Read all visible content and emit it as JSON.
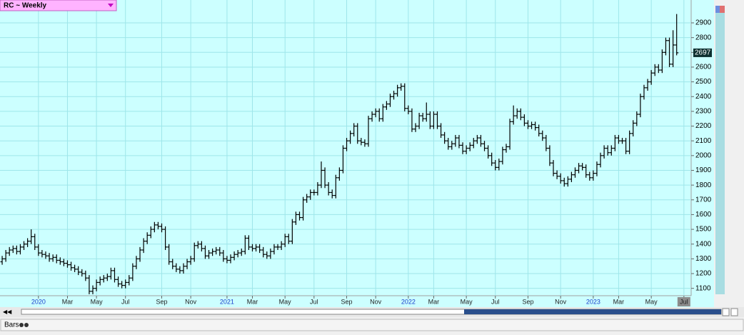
{
  "chart_data": {
    "type": "ohlc",
    "title": "RC ~ Weekly",
    "status": "Bars",
    "color": "#000000",
    "grid": true,
    "open": [
      1280,
      1300,
      1340,
      1360,
      1370,
      1350,
      1380,
      1400,
      1420,
      1450,
      1380,
      1340,
      1330,
      1320,
      1300,
      1310,
      1290,
      1280,
      1270,
      1260,
      1240,
      1230,
      1210,
      1200,
      1170,
      1080,
      1100,
      1140,
      1160,
      1170,
      1180,
      1220,
      1160,
      1130,
      1120,
      1140,
      1170,
      1250,
      1300,
      1360,
      1420,
      1460,
      1500,
      1530,
      1520,
      1500,
      1380,
      1280,
      1250,
      1230,
      1220,
      1250,
      1280,
      1300,
      1390,
      1400,
      1370,
      1320,
      1340,
      1350,
      1360,
      1340,
      1300,
      1290,
      1310,
      1330,
      1340,
      1350,
      1440,
      1380,
      1370,
      1380,
      1360,
      1330,
      1320,
      1350,
      1380,
      1380,
      1400,
      1450,
      1420,
      1550,
      1600,
      1580,
      1700,
      1720,
      1750,
      1750,
      1800,
      1900,
      1800,
      1750,
      1730,
      1850,
      1900,
      2050,
      2100,
      2150,
      2200,
      2100,
      2090,
      2080,
      2250,
      2280,
      2300,
      2250,
      2330,
      2350,
      2400,
      2420,
      2460,
      2470,
      2320,
      2300,
      2180,
      2200,
      2270,
      2250,
      2280,
      2200,
      2280,
      2200,
      2140,
      2100,
      2060,
      2080,
      2120,
      2070,
      2030,
      2050,
      2070,
      2100,
      2120,
      2080,
      2050,
      2000,
      1950,
      1920,
      1960,
      2040,
      2060,
      2230,
      2270,
      2300,
      2260,
      2220,
      2200,
      2210,
      2190,
      2150,
      2120,
      2050,
      1950,
      1880,
      1860,
      1830,
      1810,
      1840,
      1870,
      1900,
      1930,
      1920,
      1870,
      1850,
      1880,
      1940,
      2000,
      2050,
      2020,
      2050,
      2120,
      2100,
      2100,
      2030,
      2150,
      2220,
      2280,
      2400,
      2460,
      2500,
      2560,
      2600,
      2580,
      2700,
      2780,
      2620,
      2750
    ],
    "high": [
      1320,
      1360,
      1380,
      1390,
      1390,
      1400,
      1420,
      1440,
      1500,
      1470,
      1400,
      1360,
      1350,
      1340,
      1330,
      1330,
      1310,
      1300,
      1290,
      1280,
      1260,
      1250,
      1230,
      1220,
      1190,
      1120,
      1160,
      1180,
      1190,
      1200,
      1240,
      1240,
      1180,
      1150,
      1160,
      1190,
      1270,
      1320,
      1380,
      1440,
      1480,
      1520,
      1550,
      1550,
      1540,
      1520,
      1400,
      1300,
      1270,
      1250,
      1270,
      1300,
      1320,
      1410,
      1420,
      1420,
      1390,
      1360,
      1370,
      1380,
      1380,
      1360,
      1320,
      1330,
      1350,
      1360,
      1370,
      1460,
      1460,
      1400,
      1400,
      1400,
      1380,
      1350,
      1370,
      1400,
      1400,
      1420,
      1470,
      1470,
      1570,
      1620,
      1620,
      1720,
      1740,
      1770,
      1770,
      1820,
      1960,
      1920,
      1820,
      1770,
      1870,
      1920,
      2070,
      2120,
      2170,
      2220,
      2220,
      2120,
      2110,
      2270,
      2300,
      2320,
      2320,
      2350,
      2370,
      2420,
      2440,
      2480,
      2490,
      2490,
      2340,
      2320,
      2220,
      2290,
      2290,
      2360,
      2300,
      2300,
      2300,
      2220,
      2160,
      2120,
      2100,
      2140,
      2140,
      2090,
      2070,
      2090,
      2120,
      2140,
      2140,
      2100,
      2070,
      2020,
      1970,
      1980,
      2060,
      2080,
      2250,
      2340,
      2320,
      2320,
      2280,
      2240,
      2230,
      2230,
      2210,
      2170,
      2140,
      2070,
      1970,
      1900,
      1880,
      1850,
      1860,
      1890,
      1920,
      1950,
      1950,
      1940,
      1890,
      1900,
      1960,
      2020,
      2070,
      2070,
      2070,
      2140,
      2140,
      2120,
      2120,
      2170,
      2240,
      2300,
      2420,
      2480,
      2520,
      2580,
      2620,
      2620,
      2720,
      2800,
      2800,
      2850,
      2960
    ],
    "low": [
      1260,
      1280,
      1320,
      1340,
      1330,
      1330,
      1360,
      1380,
      1400,
      1360,
      1320,
      1310,
      1300,
      1280,
      1280,
      1270,
      1260,
      1250,
      1240,
      1220,
      1210,
      1190,
      1180,
      1150,
      1060,
      1060,
      1080,
      1120,
      1140,
      1150,
      1160,
      1140,
      1110,
      1100,
      1100,
      1120,
      1150,
      1230,
      1280,
      1340,
      1400,
      1440,
      1480,
      1500,
      1480,
      1360,
      1260,
      1230,
      1210,
      1200,
      1200,
      1230,
      1260,
      1280,
      1370,
      1350,
      1300,
      1300,
      1320,
      1330,
      1320,
      1280,
      1270,
      1270,
      1290,
      1310,
      1320,
      1330,
      1360,
      1350,
      1350,
      1340,
      1310,
      1300,
      1300,
      1330,
      1360,
      1360,
      1380,
      1400,
      1400,
      1530,
      1560,
      1560,
      1680,
      1700,
      1730,
      1730,
      1780,
      1780,
      1730,
      1710,
      1710,
      1830,
      1880,
      2030,
      2080,
      2130,
      2080,
      2070,
      2060,
      2060,
      2230,
      2260,
      2230,
      2230,
      2310,
      2330,
      2380,
      2400,
      2440,
      2300,
      2280,
      2160,
      2160,
      2180,
      2230,
      2230,
      2180,
      2180,
      2180,
      2120,
      2080,
      2040,
      2040,
      2060,
      2050,
      2010,
      2010,
      2030,
      2050,
      2080,
      2060,
      2030,
      1980,
      1930,
      1900,
      1900,
      1940,
      2020,
      2040,
      2210,
      2250,
      2240,
      2200,
      2180,
      2180,
      2170,
      2130,
      2100,
      2030,
      1930,
      1860,
      1840,
      1810,
      1790,
      1790,
      1820,
      1850,
      1880,
      1900,
      1850,
      1830,
      1830,
      1860,
      1920,
      1980,
      2000,
      2000,
      2030,
      2080,
      2080,
      2010,
      2010,
      2130,
      2200,
      2260,
      2380,
      2440,
      2480,
      2540,
      2560,
      2560,
      2680,
      2600,
      2600,
      2680
    ],
    "close": [
      1300,
      1340,
      1360,
      1370,
      1350,
      1380,
      1400,
      1420,
      1450,
      1380,
      1340,
      1330,
      1320,
      1300,
      1310,
      1290,
      1280,
      1270,
      1260,
      1240,
      1230,
      1210,
      1200,
      1170,
      1080,
      1100,
      1140,
      1160,
      1170,
      1180,
      1220,
      1160,
      1130,
      1120,
      1140,
      1170,
      1250,
      1300,
      1360,
      1420,
      1460,
      1500,
      1530,
      1520,
      1500,
      1380,
      1280,
      1250,
      1230,
      1220,
      1250,
      1280,
      1300,
      1390,
      1400,
      1370,
      1320,
      1340,
      1350,
      1360,
      1340,
      1300,
      1290,
      1310,
      1330,
      1340,
      1350,
      1440,
      1380,
      1370,
      1380,
      1360,
      1330,
      1320,
      1350,
      1380,
      1380,
      1400,
      1450,
      1420,
      1550,
      1600,
      1580,
      1700,
      1720,
      1750,
      1750,
      1800,
      1900,
      1800,
      1750,
      1730,
      1850,
      1900,
      2050,
      2100,
      2150,
      2200,
      2100,
      2090,
      2080,
      2250,
      2280,
      2300,
      2250,
      2330,
      2350,
      2400,
      2420,
      2460,
      2470,
      2320,
      2300,
      2180,
      2200,
      2270,
      2250,
      2280,
      2200,
      2280,
      2200,
      2140,
      2100,
      2060,
      2080,
      2120,
      2070,
      2030,
      2050,
      2070,
      2100,
      2120,
      2080,
      2050,
      2000,
      1950,
      1920,
      1960,
      2040,
      2060,
      2230,
      2270,
      2300,
      2260,
      2220,
      2200,
      2210,
      2190,
      2150,
      2120,
      2050,
      1950,
      1880,
      1860,
      1830,
      1810,
      1840,
      1870,
      1900,
      1930,
      1920,
      1870,
      1850,
      1880,
      1940,
      2000,
      2050,
      2020,
      2050,
      2120,
      2100,
      2100,
      2030,
      2150,
      2220,
      2280,
      2400,
      2460,
      2500,
      2560,
      2600,
      2580,
      2700,
      2780,
      2620,
      2750,
      2697
    ],
    "xlim": [
      -0.6,
      190
    ],
    "xticks": [
      {
        "value": 10,
        "label": "2020"
      },
      {
        "value": 18,
        "label": "Mar"
      },
      {
        "value": 26,
        "label": "May"
      },
      {
        "value": 34,
        "label": "Jul"
      },
      {
        "value": 44,
        "label": "Sep"
      },
      {
        "value": 52,
        "label": "Nov"
      },
      {
        "value": 62,
        "label": "2021"
      },
      {
        "value": 69,
        "label": "Mar"
      },
      {
        "value": 78,
        "label": "May"
      },
      {
        "value": 86,
        "label": "Jul"
      },
      {
        "value": 95,
        "label": "Sep"
      },
      {
        "value": 103,
        "label": "Nov"
      },
      {
        "value": 112,
        "label": "2022"
      },
      {
        "value": 119,
        "label": "Mar"
      },
      {
        "value": 128,
        "label": "May"
      },
      {
        "value": 136,
        "label": "Jul"
      },
      {
        "value": 145,
        "label": "Sep"
      },
      {
        "value": 154,
        "label": "Nov"
      },
      {
        "value": 163,
        "label": "2023"
      },
      {
        "value": 170,
        "label": "Mar"
      },
      {
        "value": 179,
        "label": "May"
      },
      {
        "value": 188,
        "label": "Jul"
      }
    ],
    "ylim": [
      1050,
      3055
    ],
    "yticks": [
      1100,
      1200,
      1300,
      1400,
      1500,
      1600,
      1700,
      1800,
      1900,
      2000,
      2100,
      2200,
      2300,
      2400,
      2500,
      2600,
      2700,
      2800,
      2900
    ]
  }
}
